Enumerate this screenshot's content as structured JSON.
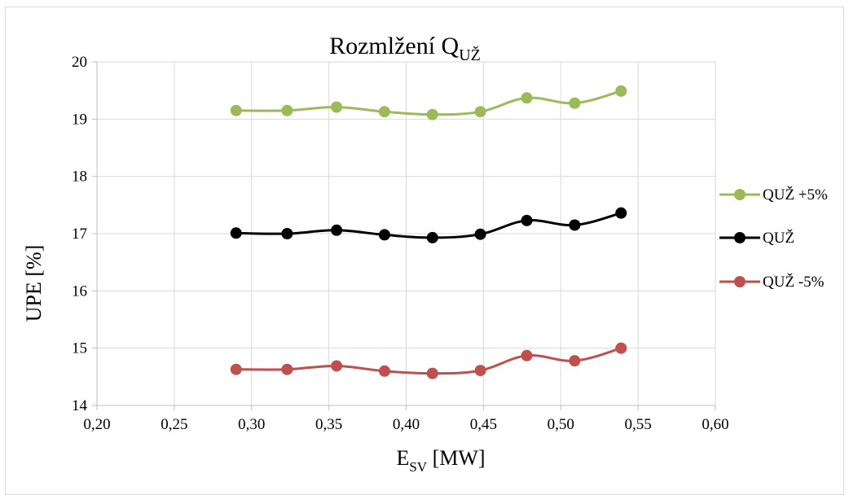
{
  "chart_data": {
    "type": "line",
    "title": "Rozmlžení Q",
    "title_sub": "UŽ",
    "xlabel": "E",
    "xlabel_sub": "SV",
    "xlabel_unit": " [MW]",
    "ylabel": "UPE [%]",
    "xlim": [
      0.2,
      0.6
    ],
    "ylim": [
      14,
      20
    ],
    "x_ticks": [
      0.2,
      0.25,
      0.3,
      0.35,
      0.4,
      0.45,
      0.5,
      0.55,
      0.6
    ],
    "x_tick_labels": [
      "0,20",
      "0,25",
      "0,30",
      "0,35",
      "0,40",
      "0,45",
      "0,50",
      "0,55",
      "0,60"
    ],
    "y_ticks": [
      14,
      15,
      16,
      17,
      18,
      19,
      20
    ],
    "y_tick_labels": [
      "14",
      "15",
      "16",
      "17",
      "18",
      "19",
      "20"
    ],
    "grid": true,
    "legend_position": "right",
    "x": [
      0.29,
      0.323,
      0.355,
      0.386,
      0.417,
      0.448,
      0.478,
      0.509,
      0.539
    ],
    "series": [
      {
        "name": "QUŽ +5%",
        "color": "#9bbb59",
        "values": [
          19.15,
          19.15,
          19.21,
          19.13,
          19.08,
          19.13,
          19.37,
          19.28,
          19.49
        ]
      },
      {
        "name": "QUŽ",
        "color": "#000000",
        "values": [
          17.01,
          17.0,
          17.06,
          16.98,
          16.93,
          16.99,
          17.23,
          17.15,
          17.36
        ]
      },
      {
        "name": "QUŽ -5%",
        "color": "#c0504d",
        "values": [
          14.63,
          14.63,
          14.69,
          14.6,
          14.56,
          14.61,
          14.87,
          14.78,
          15.0
        ]
      }
    ]
  }
}
